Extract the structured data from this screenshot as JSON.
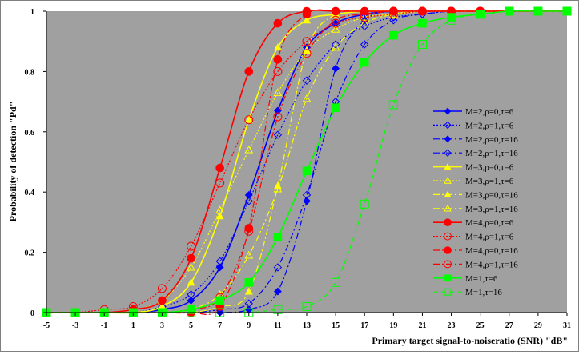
{
  "chart_data": {
    "type": "line",
    "xlabel": "Primary target signal-to-noiseratio (SNR) \"dB\"",
    "ylabel": "Probability of detection \"Pd\"",
    "xlim": [
      -5,
      31
    ],
    "ylim": [
      0,
      1
    ],
    "x_ticks": [
      "-5",
      "-3",
      "-1",
      "1",
      "3",
      "5",
      "7",
      "9",
      "11",
      "13",
      "15",
      "17",
      "19",
      "21",
      "23",
      "25",
      "27",
      "29",
      "31"
    ],
    "y_ticks": [
      "0",
      "0.2",
      "0.4",
      "0.6",
      "0.8",
      "1"
    ],
    "plot_background": "#a0a0a0",
    "grid": false,
    "legend_position": "right",
    "series": [
      {
        "name": "M=2,ρ=0,τ=6",
        "color": "#0000ff",
        "dash": "solid",
        "marker": "diamond",
        "fill": true,
        "x": [
          -5,
          -3,
          -1,
          1,
          3,
          5,
          7,
          9,
          11,
          13,
          15,
          17,
          19,
          21,
          23,
          25,
          27,
          29,
          31
        ],
        "y": [
          0,
          0,
          0,
          0,
          0.01,
          0.04,
          0.15,
          0.39,
          0.67,
          0.88,
          0.96,
          0.99,
          1,
          1,
          1,
          1,
          1,
          1,
          1
        ]
      },
      {
        "name": "M=2,ρ=1,τ=6",
        "color": "#0000ff",
        "dash": "dot",
        "marker": "diamond",
        "fill": false,
        "x": [
          -5,
          -3,
          -1,
          1,
          3,
          5,
          7,
          9,
          11,
          13,
          15,
          17,
          19,
          21,
          23,
          25,
          27,
          29,
          31
        ],
        "y": [
          0,
          0,
          0,
          0,
          0.02,
          0.06,
          0.17,
          0.37,
          0.59,
          0.77,
          0.89,
          0.95,
          0.98,
          0.99,
          1,
          1,
          1,
          1,
          1
        ]
      },
      {
        "name": "M=2,ρ=0,τ=16",
        "color": "#0000ff",
        "dash": "dashdot",
        "marker": "diamond",
        "fill": true,
        "x": [
          -5,
          -3,
          -1,
          1,
          3,
          5,
          7,
          9,
          11,
          13,
          15,
          17,
          19,
          21,
          23,
          25,
          27,
          29,
          31
        ],
        "y": [
          0,
          0,
          0,
          0,
          0,
          0,
          0,
          0.01,
          0.07,
          0.37,
          0.81,
          0.97,
          1,
          1,
          1,
          1,
          1,
          1,
          1
        ]
      },
      {
        "name": "M=2,ρ=1,τ=16",
        "color": "#0000ff",
        "dash": "dashdot",
        "marker": "diamond",
        "fill": false,
        "x": [
          -5,
          -3,
          -1,
          1,
          3,
          5,
          7,
          9,
          11,
          13,
          15,
          17,
          19,
          21,
          23,
          25,
          27,
          29,
          31
        ],
        "y": [
          0,
          0,
          0,
          0,
          0,
          0,
          0.01,
          0.03,
          0.15,
          0.39,
          0.7,
          0.89,
          0.97,
          0.99,
          1,
          1,
          1,
          1,
          1
        ]
      },
      {
        "name": "M=3,ρ=0,τ=6",
        "color": "#ffff00",
        "dash": "solid",
        "marker": "triangle",
        "fill": true,
        "x": [
          -5,
          -3,
          -1,
          1,
          3,
          5,
          7,
          9,
          11,
          13,
          15,
          17,
          19,
          21,
          23,
          25,
          27,
          29,
          31
        ],
        "y": [
          0,
          0,
          0,
          0,
          0.02,
          0.1,
          0.32,
          0.64,
          0.88,
          0.97,
          0.99,
          1,
          1,
          1,
          1,
          1,
          1,
          1,
          1
        ]
      },
      {
        "name": "M=3,ρ=1,τ=6",
        "color": "#ffff00",
        "dash": "dot",
        "marker": "triangle",
        "fill": false,
        "x": [
          -5,
          -3,
          -1,
          1,
          3,
          5,
          7,
          9,
          11,
          13,
          15,
          17,
          19,
          21,
          23,
          25,
          27,
          29,
          31
        ],
        "y": [
          0,
          0,
          0,
          0.01,
          0.04,
          0.15,
          0.34,
          0.54,
          0.73,
          0.87,
          0.94,
          0.98,
          0.99,
          1,
          1,
          1,
          1,
          1,
          1
        ]
      },
      {
        "name": "M=3,ρ=0,τ=16",
        "color": "#ffff00",
        "dash": "dashdot",
        "marker": "triangle",
        "fill": true,
        "x": [
          -5,
          -3,
          -1,
          1,
          3,
          5,
          7,
          9,
          11,
          13,
          15,
          17,
          19,
          21,
          23,
          25,
          27,
          29,
          31
        ],
        "y": [
          0,
          0,
          0,
          0,
          0,
          0,
          0.02,
          0.07,
          0.42,
          0.87,
          0.99,
          1,
          1,
          1,
          1,
          1,
          1,
          1,
          1
        ]
      },
      {
        "name": "M=3,ρ=1,τ=16",
        "color": "#ffff00",
        "dash": "dashdot",
        "marker": "triangle",
        "fill": false,
        "x": [
          -5,
          -3,
          -1,
          1,
          3,
          5,
          7,
          9,
          11,
          13,
          15,
          17,
          19,
          21,
          23,
          25,
          27,
          29,
          31
        ],
        "y": [
          0,
          0,
          0,
          0,
          0,
          0.01,
          0.06,
          0.19,
          0.41,
          0.71,
          0.88,
          0.96,
          0.99,
          1,
          1,
          1,
          1,
          1,
          1
        ]
      },
      {
        "name": "M=4,ρ=0,τ=6",
        "color": "#ff0000",
        "dash": "solid",
        "marker": "circle",
        "fill": true,
        "x": [
          -5,
          -3,
          -1,
          1,
          3,
          5,
          7,
          9,
          11,
          13,
          15,
          17,
          19,
          21,
          23,
          25,
          27,
          29,
          31
        ],
        "y": [
          0,
          0,
          0,
          0.01,
          0.04,
          0.18,
          0.48,
          0.8,
          0.96,
          1,
          1,
          1,
          1,
          1,
          1,
          1,
          1,
          1,
          1
        ]
      },
      {
        "name": "M=4,ρ=1,τ=6",
        "color": "#ff0000",
        "dash": "dot",
        "marker": "circle",
        "fill": false,
        "x": [
          -5,
          -3,
          -1,
          1,
          3,
          5,
          7,
          9,
          11,
          13,
          15,
          17,
          19,
          21,
          23,
          25,
          27,
          29,
          31
        ],
        "y": [
          0,
          0,
          0.01,
          0.02,
          0.08,
          0.22,
          0.43,
          0.64,
          0.8,
          0.9,
          0.96,
          0.98,
          0.99,
          1,
          1,
          1,
          1,
          1,
          1
        ]
      },
      {
        "name": "M=4,ρ=0,τ=16",
        "color": "#ff0000",
        "dash": "dashdot",
        "marker": "circle",
        "fill": true,
        "x": [
          -5,
          -3,
          -1,
          1,
          3,
          5,
          7,
          9,
          11,
          13,
          15,
          17,
          19,
          21,
          23,
          25,
          27,
          29,
          31
        ],
        "y": [
          0,
          0,
          0,
          0,
          0,
          0,
          0.02,
          0.28,
          0.84,
          0.99,
          1,
          1,
          1,
          1,
          1,
          1,
          1,
          1,
          1
        ]
      },
      {
        "name": "M=4,ρ=1,τ=16",
        "color": "#ff0000",
        "dash": "dashdot",
        "marker": "circle",
        "fill": false,
        "x": [
          -5,
          -3,
          -1,
          1,
          3,
          5,
          7,
          9,
          11,
          13,
          15,
          17,
          19,
          21,
          23,
          25,
          27,
          29,
          31
        ],
        "y": [
          0,
          0,
          0,
          0,
          0,
          0.01,
          0.05,
          0.27,
          0.65,
          0.86,
          0.97,
          0.99,
          1,
          1,
          1,
          1,
          1,
          1,
          1
        ]
      },
      {
        "name": "M=1,τ=6",
        "color": "#00ff00",
        "dash": "solid",
        "marker": "square",
        "fill": true,
        "x": [
          -5,
          -3,
          -1,
          1,
          3,
          5,
          7,
          9,
          11,
          13,
          15,
          17,
          19,
          21,
          23,
          25,
          27,
          29,
          31
        ],
        "y": [
          0,
          0,
          0,
          0,
          0,
          0.01,
          0.04,
          0.1,
          0.25,
          0.47,
          0.68,
          0.83,
          0.92,
          0.96,
          0.98,
          0.99,
          1,
          1,
          1
        ]
      },
      {
        "name": "M=1,τ=16",
        "color": "#00ff00",
        "dash": "dash",
        "marker": "square",
        "fill": false,
        "x": [
          -5,
          -3,
          -1,
          1,
          3,
          5,
          7,
          9,
          11,
          13,
          15,
          17,
          19,
          21,
          23,
          25,
          27,
          29,
          31
        ],
        "y": [
          0,
          0,
          0,
          0,
          0,
          0,
          0,
          0,
          0.01,
          0.02,
          0.1,
          0.36,
          0.69,
          0.89,
          0.97,
          0.99,
          1,
          1,
          1
        ]
      }
    ]
  }
}
